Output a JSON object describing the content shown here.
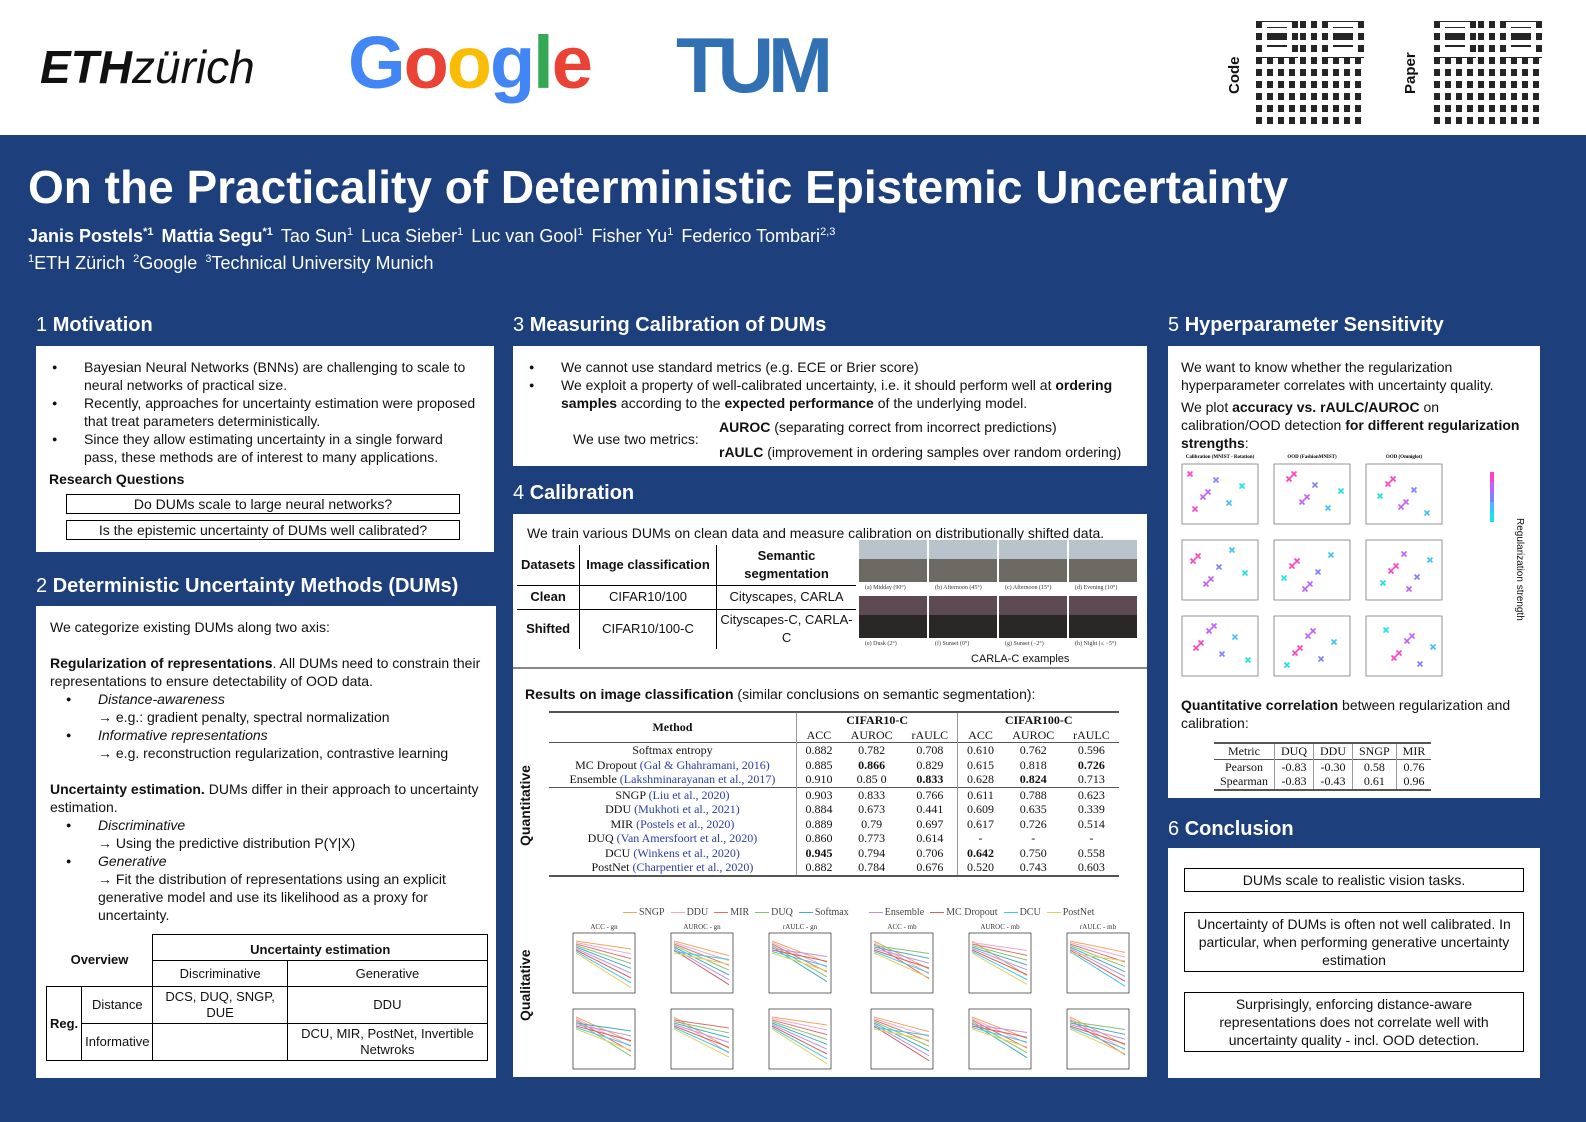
{
  "header": {
    "logos": [
      "ETH zürich",
      "Google",
      "TUM"
    ],
    "qr_code_label": "Code",
    "qr_paper_label": "Paper"
  },
  "title": "On the Practicality of Deterministic Epistemic Uncertainty",
  "authors": [
    {
      "name": "Janis Postels",
      "sup": "*1",
      "bold": true
    },
    {
      "name": "Mattia Segu",
      "sup": "*1",
      "bold": true
    },
    {
      "name": "Tao Sun",
      "sup": "1"
    },
    {
      "name": "Luca Sieber",
      "sup": "1"
    },
    {
      "name": "Luc van Gool",
      "sup": "1"
    },
    {
      "name": "Fisher Yu",
      "sup": "1"
    },
    {
      "name": "Federico Tombari",
      "sup": "2,3"
    }
  ],
  "affiliations": [
    {
      "sup": "1",
      "name": "ETH Zürich"
    },
    {
      "sup": "2",
      "name": "Google"
    },
    {
      "sup": "3",
      "name": "Technical University Munich"
    }
  ],
  "s1": {
    "num": "1",
    "title": "Motivation",
    "bullets": [
      "Bayesian Neural Networks (BNNs) are challenging to scale to neural networks of practical size.",
      "Recently, approaches for uncertainty estimation were proposed that treat parameters deterministically.",
      "Since they allow estimating uncertainty in a single forward pass, these methods are of interest to many applications."
    ],
    "rq_title": "Research Questions",
    "rq": [
      "Do DUMs scale to large neural networks?",
      "Is the epistemic uncertainty of DUMs well calibrated?"
    ]
  },
  "s2": {
    "num": "2",
    "title": "Deterministic Uncertainty Methods (DUMs)",
    "intro": "We categorize existing DUMs along two axis:",
    "reg_bold": "Regularization of representations",
    "reg_text": ". All DUMs need to constrain their representations to ensure detectability of OOD data.",
    "reg_items": [
      {
        "name": "Distance-awareness",
        "desc": "→ e.g.: gradient penalty, spectral normalization"
      },
      {
        "name": "Informative representations",
        "desc": "→ e.g. reconstruction regularization, contrastive learning"
      }
    ],
    "unc_bold": "Uncertainty estimation.",
    "unc_text": " DUMs differ in their approach to uncertainty estimation.",
    "unc_items": [
      {
        "name": "Discriminative",
        "desc": "→ Using the predictive distribution P(Y|X)"
      },
      {
        "name": "Generative",
        "desc": "→ Fit the distribution of representations using an explicit generative model and use its likelihood as a proxy for uncertainty."
      }
    ],
    "table": {
      "overview": "Overview",
      "unc": "Uncertainty estimation",
      "disc": "Discriminative",
      "gen": "Generative",
      "reg": "Reg.",
      "distance": "Distance",
      "informative": "Informative",
      "dist_disc": "DCS, DUQ, SNGP, DUE",
      "dist_gen": "DDU",
      "inf_disc": "",
      "inf_gen": "DCU, MIR, PostNet, Invertible Netwroks"
    }
  },
  "s3": {
    "num": "3",
    "title": "Measuring Calibration of DUMs",
    "b1": "We cannot use standard metrics (e.g. ECE or Brier score)",
    "b2a": "We exploit a property of well-calibrated uncertainty, i.e. it should perform well at ",
    "b2b": "ordering samples",
    "b2c": " according to the ",
    "b2d": "expected performance",
    "b2e": " of the underlying model.",
    "metrics_label": "We use two metrics:",
    "m1": "AUROC",
    "m1d": " (separating correct from incorrect predictions)",
    "m2": "rAULC",
    "m2d": " (improvement in ordering samples over random ordering)"
  },
  "s4": {
    "num": "4",
    "title": "Calibration",
    "intro": "We train various DUMs on clean data and measure calibration on distributionally shifted data.",
    "ds": {
      "h": [
        "Datasets",
        "Image classification",
        "Semantic segmentation"
      ],
      "rows": [
        [
          "Clean",
          "CIFAR10/100",
          "Cityscapes, CARLA"
        ],
        [
          "Shifted",
          "CIFAR10/100-C",
          "Cityscapes-C, CARLA-C"
        ]
      ]
    },
    "img_caps": [
      "(a) Midday (90°)",
      "(b) Afternoon (45°)",
      "(c) Afternoon (15°)",
      "(d) Evening (10°)",
      "(e) Dusk (2°)",
      "(f) Sunset (0°)",
      "(g) Sunset (−2°)",
      "(h) Night (≤ −5°)"
    ],
    "img_label": "CARLA-C examples",
    "res_bold": "Results on image classification",
    "res_text": " (similar conclusions on semantic segmentation):",
    "quant_label": "Quantitative",
    "qual_label": "Qualitative",
    "res": {
      "method": "Method",
      "g1": "CIFAR10-C",
      "g2": "CIFAR100-C",
      "cols": [
        "ACC",
        "AUROC",
        "rAULC",
        "ACC",
        "AUROC",
        "rAULC"
      ],
      "rows": [
        {
          "m": "Softmax entropy",
          "c": "",
          "v": [
            "0.882",
            "0.782",
            "0.708",
            "0.610",
            "0.762",
            "0.596"
          ],
          "bold": []
        },
        {
          "m": "MC Dropout ",
          "c": "(Gal & Ghahramani, 2016)",
          "v": [
            "0.885",
            "0.866",
            "0.829",
            "0.615",
            "0.818",
            "0.726"
          ],
          "bold": [
            1,
            5
          ]
        },
        {
          "m": "Ensemble ",
          "c": "(Lakshminarayanan et al., 2017)",
          "v": [
            "0.910",
            "0.85 0",
            "0.833",
            "0.628",
            "0.824",
            "0.713"
          ],
          "bold": [
            2,
            4
          ]
        },
        {
          "m": "SNGP ",
          "c": "(Liu et al., 2020)",
          "v": [
            "0.903",
            "0.833",
            "0.766",
            "0.611",
            "0.788",
            "0.623"
          ],
          "bold": []
        },
        {
          "m": "DDU ",
          "c": "(Mukhoti et al., 2021)",
          "v": [
            "0.884",
            "0.673",
            "0.441",
            "0.609",
            "0.635",
            "0.339"
          ],
          "bold": []
        },
        {
          "m": "MIR ",
          "c": "(Postels et al., 2020)",
          "v": [
            "0.889",
            "0.79",
            "0.697",
            "0.617",
            "0.726",
            "0.514"
          ],
          "bold": []
        },
        {
          "m": "DUQ ",
          "c": "(Van Amersfoort et al., 2020)",
          "v": [
            "0.860",
            "0.773",
            "0.614",
            "-",
            "-",
            "-"
          ],
          "bold": []
        },
        {
          "m": "DCU ",
          "c": "(Winkens et al., 2020)",
          "v": [
            "0.945",
            "0.794",
            "0.706",
            "0.642",
            "0.750",
            "0.558"
          ],
          "bold": [
            0,
            3
          ]
        },
        {
          "m": "PostNet ",
          "c": "(Charpentier et al., 2020)",
          "v": [
            "0.882",
            "0.784",
            "0.676",
            "0.520",
            "0.743",
            "0.603"
          ],
          "bold": []
        }
      ]
    },
    "legend": [
      {
        "n": "SNGP",
        "c": "#f4a460"
      },
      {
        "n": "DDU",
        "c": "#f4a6c8"
      },
      {
        "n": "MIR",
        "c": "#e07070"
      },
      {
        "n": "DUQ",
        "c": "#88c070"
      },
      {
        "n": "Softmax",
        "c": "#40b0c0"
      },
      {
        "n": "Ensemble",
        "c": "#c090e0"
      },
      {
        "n": "MC Dropout",
        "c": "#d06060"
      },
      {
        "n": "DCU",
        "c": "#40c8e0"
      },
      {
        "n": "PostNet",
        "c": "#e0d060"
      }
    ],
    "plot_titles": [
      "ACC - gn",
      "AUROC - gn",
      "rAULC - gn",
      "ACC - mb",
      "AUROC - mb",
      "rAULC - mb"
    ]
  },
  "s5": {
    "num": "5",
    "title": "Hyperparameter Sensitivity",
    "p1": "We want to know whether the regularization hyperparameter correlates with uncertainty quality.",
    "p2a": "We plot ",
    "p2b": "accuracy vs. rAULC/AUROC",
    "p2c": " on calibration/OOD detection ",
    "p2d": "for different regularization strengths",
    "p2e": ":",
    "plot_titles": [
      "Calibration (MNIST - Rotation)",
      "OOD (FashionMNIST)",
      "OOD (Omniglot)"
    ],
    "side_label": "Regularization strength",
    "corr_bold": "Quantitative correlation",
    "corr_text": " between regularization and calibration:",
    "corr": {
      "h": [
        "Metric",
        "DUQ",
        "DDU",
        "SNGP",
        "MIR"
      ],
      "rows": [
        [
          "Pearson",
          "-0.83",
          "-0.30",
          "0.58",
          "0.76"
        ],
        [
          "Spearman",
          "-0.83",
          "-0.43",
          "0.61",
          "0.96"
        ]
      ]
    }
  },
  "s6": {
    "num": "6",
    "title": "Conclusion",
    "items": [
      "DUMs scale to realistic vision tasks.",
      "Uncertainty of DUMs is often not well calibrated. In particular, when performing generative uncertainty estimation",
      "Surprisingly, enforcing distance-aware representations does not correlate well with uncertainty quality - incl. OOD detection."
    ]
  }
}
